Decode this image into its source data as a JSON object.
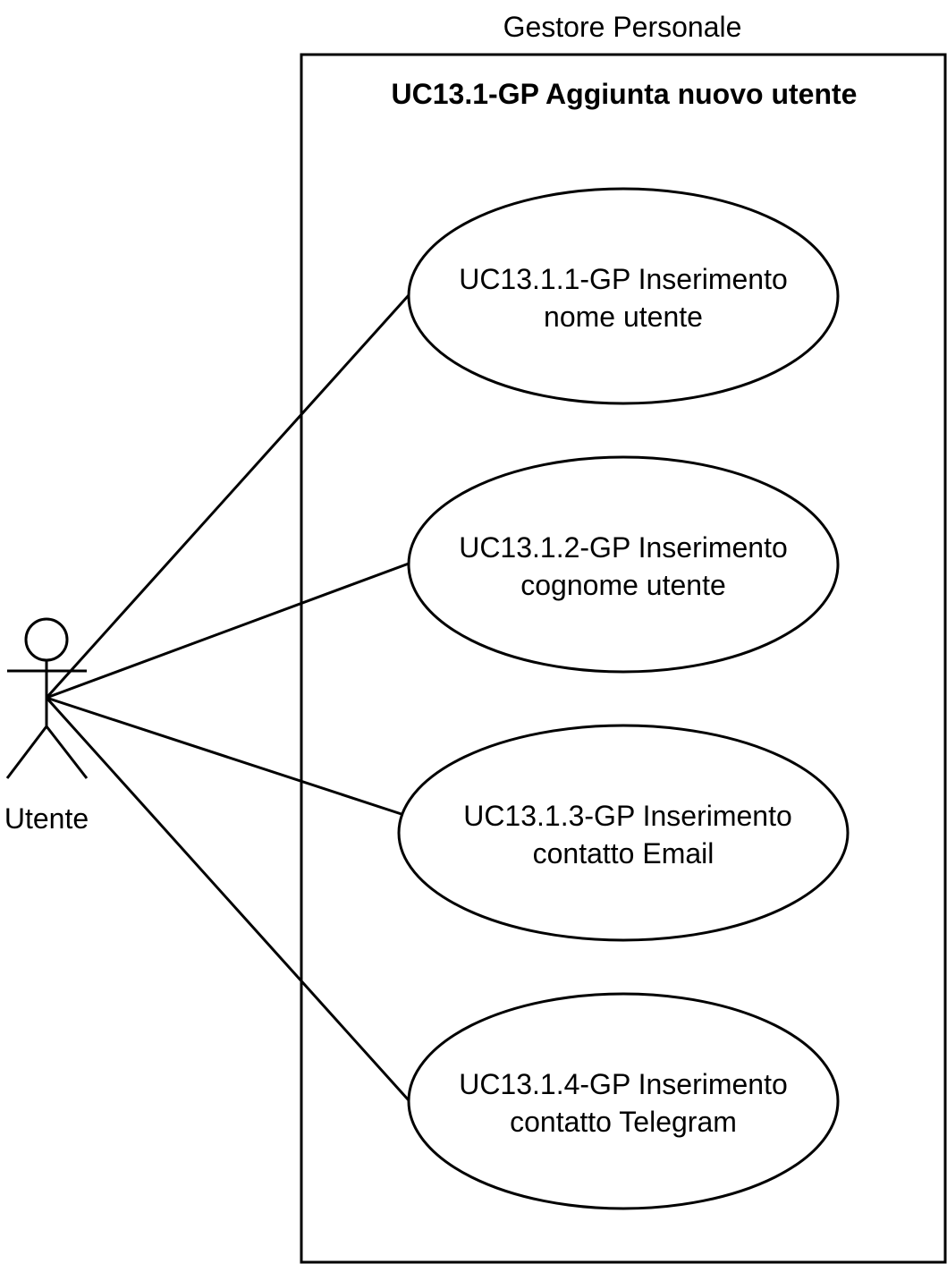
{
  "system": {
    "label": "Gestore Personale"
  },
  "boundary": {
    "title": "UC13.1-GP Aggiunta nuovo utente"
  },
  "actor": {
    "label": "Utente"
  },
  "use_cases": [
    {
      "line1": "UC13.1.1-GP Inserimento",
      "line2": "nome utente"
    },
    {
      "line1": "UC13.1.2-GP Inserimento",
      "line2": "cognome utente"
    },
    {
      "line1": "UC13.1.3-GP Inserimento",
      "line2": "contatto Email"
    },
    {
      "line1": "UC13.1.4-GP Inserimento",
      "line2": "contatto Telegram"
    }
  ],
  "colors": {
    "stroke": "#000000",
    "background": "#ffffff"
  }
}
